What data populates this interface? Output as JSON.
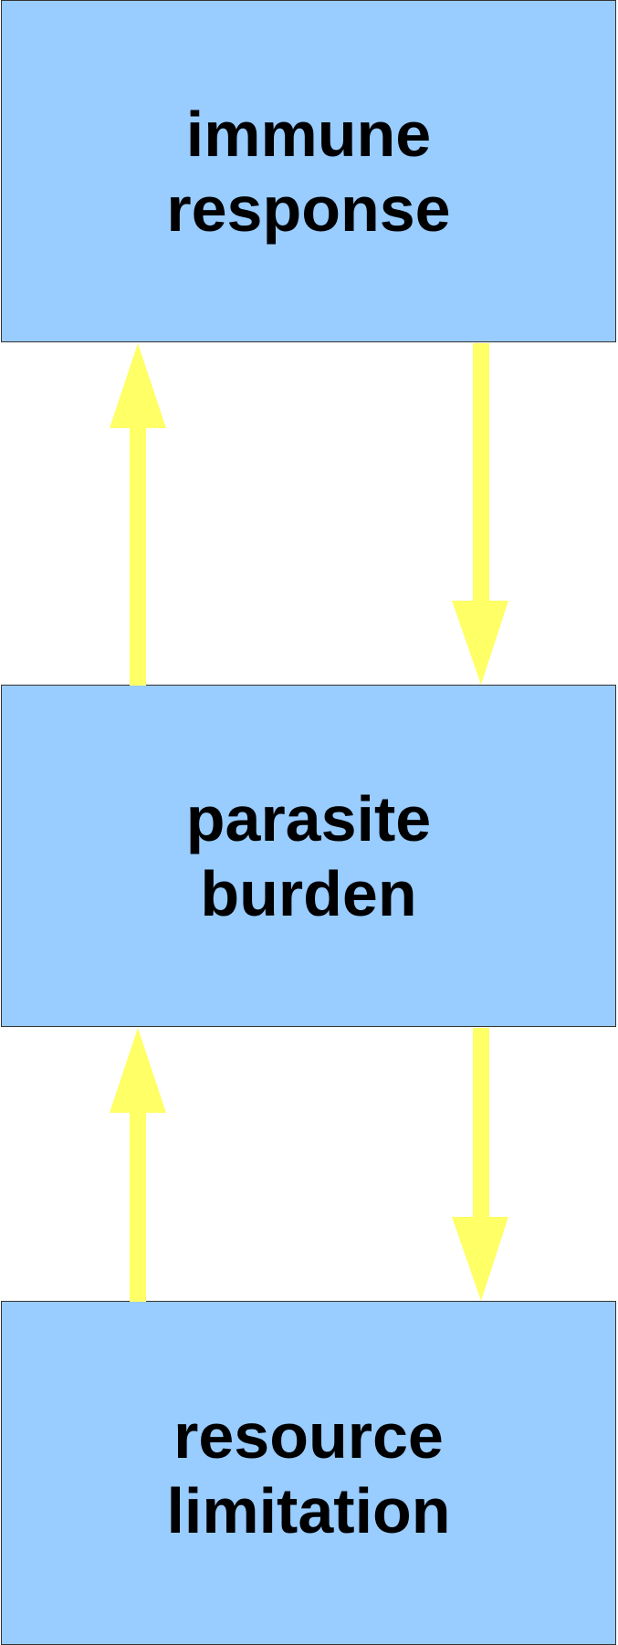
{
  "colors": {
    "box_fill": "#99ccff",
    "box_border": "#333333",
    "arrow": "#ffff66",
    "text": "#000000"
  },
  "boxes": {
    "immune": {
      "line1": "immune",
      "line2": "response"
    },
    "parasite": {
      "line1": "parasite",
      "line2": "burden"
    },
    "resource": {
      "line1": "resource",
      "line2": "limitation"
    }
  },
  "arrows": [
    {
      "name": "parasite-to-immune",
      "from": "parasite burden",
      "to": "immune response",
      "direction": "up"
    },
    {
      "name": "immune-to-parasite",
      "from": "immune response",
      "to": "parasite burden",
      "direction": "down"
    },
    {
      "name": "resource-to-parasite",
      "from": "resource limitation",
      "to": "parasite burden",
      "direction": "up"
    },
    {
      "name": "parasite-to-resource",
      "from": "parasite burden",
      "to": "resource limitation",
      "direction": "down"
    }
  ]
}
